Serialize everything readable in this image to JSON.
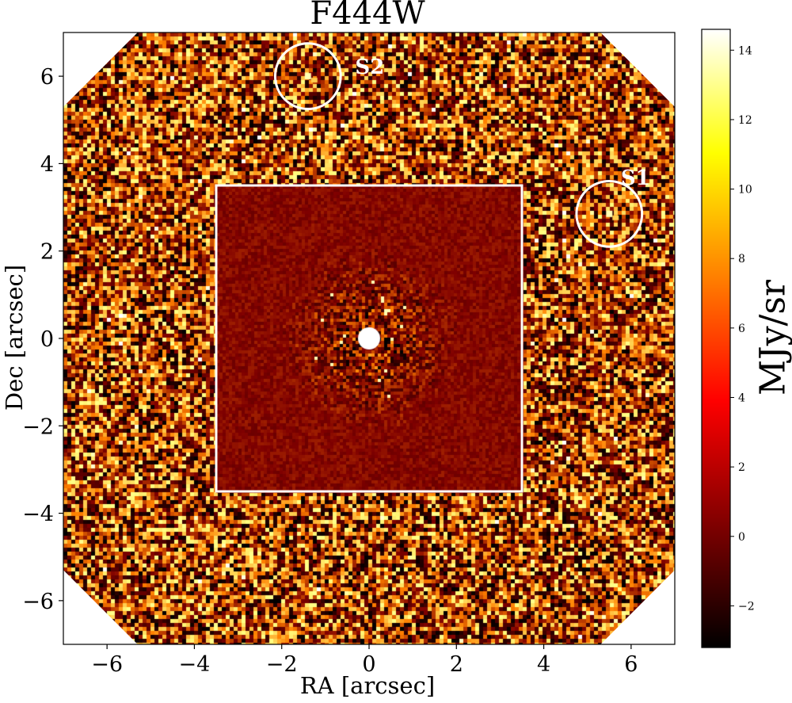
{
  "figure": {
    "title": "F444W",
    "xlabel": "RA [arcsec]",
    "ylabel": "Dec [arcsec]",
    "colorbar_label": "MJy/sr"
  },
  "axes": {
    "x_range": [
      -7,
      7
    ],
    "y_range": [
      -7,
      7
    ],
    "x_ticks": [
      -6,
      -4,
      -2,
      0,
      2,
      4,
      6
    ],
    "y_ticks": [
      -6,
      -4,
      -2,
      0,
      2,
      4,
      6
    ],
    "x_tick_labels": [
      "−6",
      "−4",
      "−2",
      "0",
      "2",
      "4",
      "6"
    ],
    "y_tick_labels": [
      "−6",
      "−4",
      "−2",
      "0",
      "2",
      "4",
      "6"
    ]
  },
  "colorbar": {
    "range": [
      -3.2,
      14.6
    ],
    "ticks": [
      -2,
      0,
      2,
      4,
      6,
      8,
      10,
      12,
      14
    ],
    "tick_labels": [
      "−2",
      "0",
      "2",
      "4",
      "6",
      "8",
      "10",
      "12",
      "14"
    ],
    "colormap": "afmhot",
    "colors": [
      "#000000",
      "#800000",
      "#ff0000",
      "#ff8000",
      "#ffff00",
      "#ffffff"
    ]
  },
  "inset": {
    "x_range": [
      -3.5,
      3.5
    ],
    "y_range": [
      -3.5,
      3.5
    ],
    "border_color": "#ffffff"
  },
  "sources": [
    {
      "label": "S1",
      "ra": 5.5,
      "dec": 2.85,
      "radius": 0.75
    },
    {
      "label": "S2",
      "ra": -1.4,
      "dec": 6.0,
      "radius": 0.75
    }
  ]
}
